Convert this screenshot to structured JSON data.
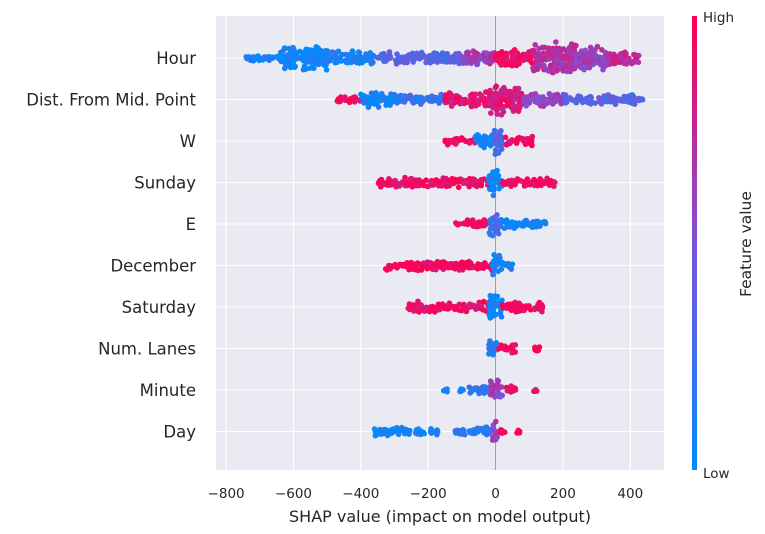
{
  "chart_data": {
    "type": "scatter",
    "subtype": "shap-beeswarm",
    "title": "",
    "xlabel": "SHAP value (impact on model output)",
    "ylabel": "",
    "xlim": [
      -830,
      500
    ],
    "xticks": [
      -800,
      -600,
      -400,
      -200,
      0,
      200,
      400
    ],
    "xtick_labels": [
      "−800",
      "−600",
      "−400",
      "−200",
      "0",
      "200",
      "400"
    ],
    "grid": true,
    "colorbar": {
      "title": "Feature value",
      "high_label": "High",
      "low_label": "Low",
      "low_color": "#008bfb",
      "mid_color": "#7d52d8",
      "high_color": "#ff0052",
      "placement": "right"
    },
    "features": [
      {
        "name": "Hour",
        "segments": [
          {
            "from": -750,
            "to": -640,
            "density": 0.1,
            "color": 0.05
          },
          {
            "from": -640,
            "to": -500,
            "density": 0.75,
            "color": 0.05
          },
          {
            "from": -500,
            "to": -360,
            "density": 0.4,
            "color": 0.1
          },
          {
            "from": -360,
            "to": -100,
            "density": 0.3,
            "color": 0.35
          },
          {
            "from": -100,
            "to": 0,
            "density": 0.4,
            "color": 0.65
          },
          {
            "from": 0,
            "to": 110,
            "density": 0.45,
            "color": 0.95
          },
          {
            "from": 110,
            "to": 240,
            "density": 1.0,
            "color": 0.7
          },
          {
            "from": 240,
            "to": 330,
            "density": 0.75,
            "color": 0.6
          },
          {
            "from": 330,
            "to": 430,
            "density": 0.35,
            "color": 0.75
          }
        ]
      },
      {
        "name": "Dist. From Mid. Point",
        "segments": [
          {
            "from": -470,
            "to": -400,
            "density": 0.15,
            "color": 0.95
          },
          {
            "from": -400,
            "to": -300,
            "density": 0.45,
            "color": 0.05
          },
          {
            "from": -300,
            "to": -150,
            "density": 0.25,
            "color": 0.2
          },
          {
            "from": -150,
            "to": -20,
            "density": 0.4,
            "color": 0.9
          },
          {
            "from": -20,
            "to": 80,
            "density": 1.0,
            "color": 0.85
          },
          {
            "from": 80,
            "to": 200,
            "density": 0.4,
            "color": 0.6
          },
          {
            "from": 200,
            "to": 440,
            "density": 0.25,
            "color": 0.35
          }
        ]
      },
      {
        "name": "W",
        "segments": [
          {
            "from": -150,
            "to": -60,
            "density": 0.15,
            "color": 0.95
          },
          {
            "from": -60,
            "to": -5,
            "density": 0.4,
            "color": 0.05
          },
          {
            "from": -5,
            "to": 20,
            "density": 0.85,
            "color": 0.3
          },
          {
            "from": 20,
            "to": 110,
            "density": 0.2,
            "color": 0.95
          }
        ]
      },
      {
        "name": "Sunday",
        "segments": [
          {
            "from": -350,
            "to": -20,
            "density": 0.22,
            "color": 0.95
          },
          {
            "from": -20,
            "to": 20,
            "density": 0.75,
            "color": 0.05
          },
          {
            "from": 20,
            "to": 180,
            "density": 0.18,
            "color": 0.95
          }
        ]
      },
      {
        "name": "E",
        "segments": [
          {
            "from": -120,
            "to": -20,
            "density": 0.15,
            "color": 0.95
          },
          {
            "from": -20,
            "to": 15,
            "density": 0.7,
            "color": 0.3
          },
          {
            "from": 15,
            "to": 150,
            "density": 0.18,
            "color": 0.05
          }
        ]
      },
      {
        "name": "December",
        "segments": [
          {
            "from": -330,
            "to": -10,
            "density": 0.22,
            "color": 0.95
          },
          {
            "from": -10,
            "to": 15,
            "density": 0.75,
            "color": 0.05
          },
          {
            "from": 15,
            "to": 50,
            "density": 0.15,
            "color": 0.05
          }
        ]
      },
      {
        "name": "Saturday",
        "segments": [
          {
            "from": -260,
            "to": -20,
            "density": 0.25,
            "color": 0.95
          },
          {
            "from": -20,
            "to": 20,
            "density": 0.75,
            "color": 0.05
          },
          {
            "from": 20,
            "to": 140,
            "density": 0.28,
            "color": 0.95
          }
        ]
      },
      {
        "name": "Num. Lanes",
        "segments": [
          {
            "from": -20,
            "to": 5,
            "density": 0.55,
            "color": 0.1
          },
          {
            "from": 5,
            "to": 60,
            "density": 0.2,
            "color": 0.95
          },
          {
            "from": 110,
            "to": 130,
            "density": 0.15,
            "color": 0.95
          }
        ]
      },
      {
        "name": "Minute",
        "segments": [
          {
            "from": -160,
            "to": -140,
            "density": 0.1,
            "color": 0.05
          },
          {
            "from": -110,
            "to": -90,
            "density": 0.1,
            "color": 0.05
          },
          {
            "from": -80,
            "to": -15,
            "density": 0.25,
            "color": 0.2
          },
          {
            "from": -15,
            "to": 20,
            "density": 0.6,
            "color": 0.6
          },
          {
            "from": 20,
            "to": 60,
            "density": 0.18,
            "color": 0.9
          },
          {
            "from": 110,
            "to": 125,
            "density": 0.1,
            "color": 0.95
          }
        ]
      },
      {
        "name": "Day",
        "segments": [
          {
            "from": -360,
            "to": -210,
            "density": 0.18,
            "color": 0.05
          },
          {
            "from": -200,
            "to": -170,
            "density": 0.1,
            "color": 0.05
          },
          {
            "from": -120,
            "to": -10,
            "density": 0.22,
            "color": 0.15
          },
          {
            "from": -10,
            "to": 10,
            "density": 0.6,
            "color": 0.6
          },
          {
            "from": 10,
            "to": 30,
            "density": 0.15,
            "color": 0.95
          },
          {
            "from": 60,
            "to": 75,
            "density": 0.1,
            "color": 0.95
          }
        ]
      }
    ]
  }
}
